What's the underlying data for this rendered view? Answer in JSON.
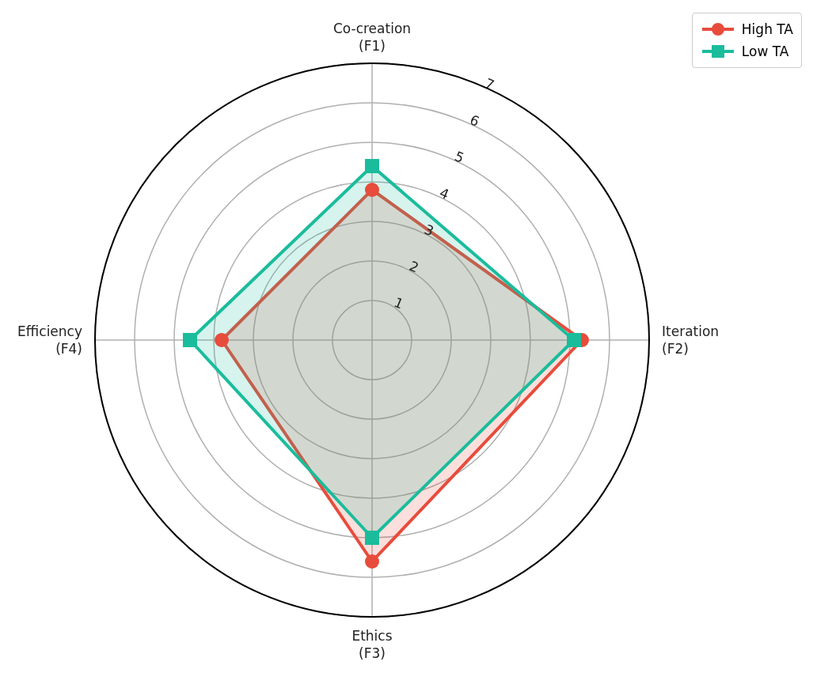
{
  "chart_data": {
    "type": "radar",
    "categories": [
      "Co-creation\n(F1)",
      "Iteration\n(F2)",
      "Ethics\n(F3)",
      "Efficiency\n(F4)"
    ],
    "series": [
      {
        "name": "High TA",
        "color": "#e74c3c",
        "marker": "circle",
        "values": [
          3.8,
          5.3,
          5.6,
          3.8
        ]
      },
      {
        "name": "Low TA",
        "color": "#1abc9c",
        "marker": "square",
        "values": [
          4.4,
          5.1,
          5.0,
          4.6
        ]
      }
    ],
    "ylim": [
      0,
      7
    ],
    "yticks": [
      1,
      2,
      3,
      4,
      5,
      6,
      7
    ],
    "grid": true,
    "legend": "top right"
  }
}
